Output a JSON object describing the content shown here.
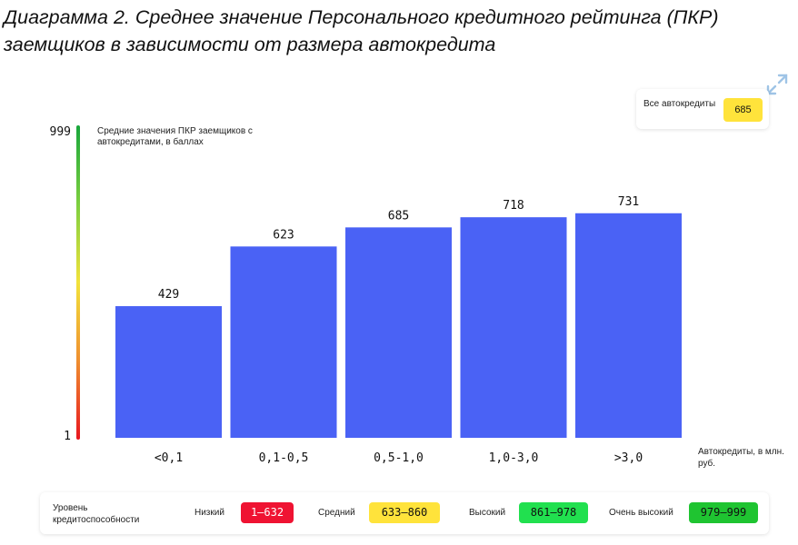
{
  "title": "Диаграмма 2. Среднее значение Персонального кредитного рейтинга (ПКР) заемщиков в зависимости от размера автокредита",
  "summary": {
    "label": "Все автокредиты",
    "value": "685"
  },
  "chart_data": {
    "type": "bar",
    "categories": [
      "<0,1",
      "0,1-0,5",
      "0,5-1,0",
      "1,0-3,0",
      ">3,0"
    ],
    "values": [
      429,
      623,
      685,
      718,
      731
    ],
    "ylabel": "Средние значения ПКР заемщиков с автокредитами, в баллах",
    "xlabel": "Автокредиты, в млн. руб.",
    "ylim": [
      1,
      999
    ],
    "y_ticks": [
      "999",
      "1"
    ],
    "bar_color": "#4a62f5",
    "grid": false
  },
  "legend": {
    "title": "Уровень кредитоспособности",
    "items": [
      {
        "label": "Низкий",
        "range": "1–632",
        "color": "#ef1332",
        "text_color": "#ffffff"
      },
      {
        "label": "Средний",
        "range": "633–860",
        "color": "#ffe33b",
        "text_color": "#111111"
      },
      {
        "label": "Высокий",
        "range": "861–978",
        "color": "#21e04f",
        "text_color": "#111111"
      },
      {
        "label": "Очень высокий",
        "range": "979–999",
        "color": "#1fc431",
        "text_color": "#111111"
      }
    ]
  }
}
